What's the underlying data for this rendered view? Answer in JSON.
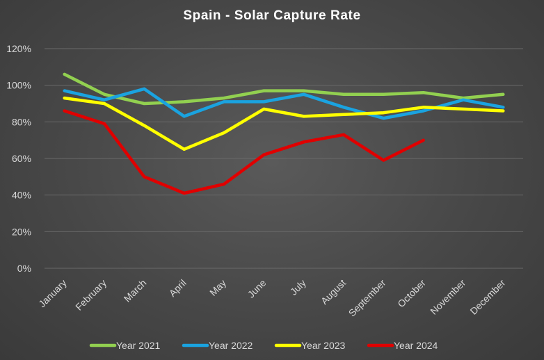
{
  "chart_data": {
    "type": "line",
    "title": "Spain - Solar Capture Rate",
    "xlabel": "",
    "ylabel": "",
    "ylim": [
      0,
      120
    ],
    "yticks": [
      0,
      20,
      40,
      60,
      80,
      100,
      120
    ],
    "ytick_labels": [
      "0%",
      "20%",
      "40%",
      "60%",
      "80%",
      "100%",
      "120%"
    ],
    "grid": true,
    "legend_position": "bottom",
    "categories": [
      "January",
      "February",
      "March",
      "April",
      "May",
      "June",
      "July",
      "August",
      "September",
      "October",
      "November",
      "December"
    ],
    "series": [
      {
        "name": "Year 2021",
        "color": "#92d050",
        "values": [
          106,
          95,
          90,
          91,
          93,
          97,
          97,
          95,
          95,
          96,
          93,
          95
        ]
      },
      {
        "name": "Year 2022",
        "color": "#1aa3e0",
        "values": [
          97,
          92,
          98,
          83,
          91,
          91,
          95,
          88,
          82,
          86,
          92,
          88
        ]
      },
      {
        "name": "Year 2023",
        "color": "#ffff00",
        "values": [
          93,
          90,
          78,
          65,
          74,
          87,
          83,
          84,
          85,
          88,
          87,
          86
        ]
      },
      {
        "name": "Year 2024",
        "color": "#e00000",
        "values": [
          86,
          79,
          50,
          41,
          46,
          62,
          69,
          73,
          59,
          70,
          null,
          null
        ]
      }
    ]
  }
}
